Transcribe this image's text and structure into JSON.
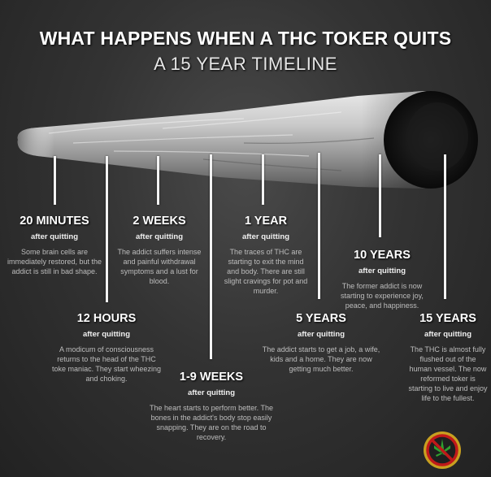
{
  "title": "WHAT HAPPENS WHEN A THC TOKER QUITS",
  "subtitle": "A 15 YEAR TIMELINE",
  "milestones": [
    {
      "time": "20 MINUTES",
      "sub": "after quitting",
      "desc": "Some brain cells are immediately restored, but the addict is still in bad shape."
    },
    {
      "time": "12 HOURS",
      "sub": "after quitting",
      "desc": "A modicum of consciousness returns to the head of the THC toke maniac. They start wheezing and choking."
    },
    {
      "time": "2 WEEKS",
      "sub": "after quitting",
      "desc": "The addict suffers intense and painful withdrawal symptoms and a lust for blood."
    },
    {
      "time": "1-9 WEEKS",
      "sub": "after quitting",
      "desc": "The heart starts to perform better. The bones in the addict's body stop easily snapping. They are on the road to recovery."
    },
    {
      "time": "1 YEAR",
      "sub": "after quitting",
      "desc": "The traces of THC are starting to exit the mind and body. There are still slight cravings for pot and murder."
    },
    {
      "time": "5 YEARS",
      "sub": "after quitting",
      "desc": "The addict starts to get a job, a wife, kids and a home. They are now getting much better."
    },
    {
      "time": "10 YEARS",
      "sub": "after quitting",
      "desc": "The former addict is now starting to experience joy, peace, and happiness."
    },
    {
      "time": "15 YEARS",
      "sub": "after quitting",
      "desc": "The THC is almost fully flushed out of the human vessel. The now reformed toker is starting to live and enjoy life to the fullest."
    }
  ],
  "colors": {
    "background": "#333333",
    "line": "#f2f2f2",
    "text_muted": "#bdbdbd",
    "badge_ring": "#c8a020",
    "badge_slash": "#c0191a"
  },
  "icons": {
    "joint": "joint-illustration",
    "badge": "no-cannabis-badge-icon"
  }
}
